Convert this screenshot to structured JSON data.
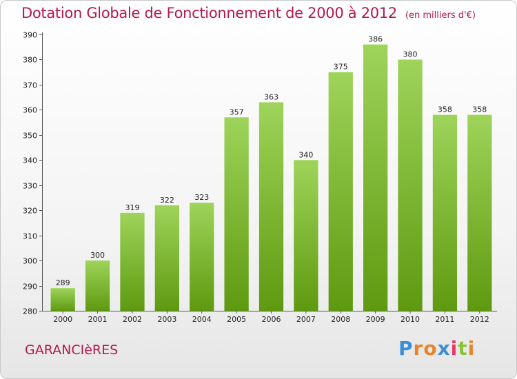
{
  "header": {
    "title": "Dotation Globale de Fonctionnement de 2000 à 2012",
    "subtitle": "(en milliers d'€)"
  },
  "footer": {
    "commune": "GARANCIèRES",
    "brand_letters": [
      "P",
      "r",
      "o",
      "x",
      "i",
      "t",
      "i"
    ],
    "brand_colors": [
      "#3a8fd6",
      "#e8842a",
      "#e8842a",
      "#3a8fd6",
      "#e83a6a",
      "#8ac43a",
      "#e8842a"
    ]
  },
  "colors": {
    "accent": "#b5174f",
    "bar_light": "#9ed45a",
    "bar_dark": "#5e9a10"
  },
  "chart_data": {
    "type": "bar",
    "title": "Dotation Globale de Fonctionnement de 2000 à 2012",
    "subtitle": "(en milliers d'€)",
    "categories": [
      "2000",
      "2001",
      "2002",
      "2003",
      "2004",
      "2005",
      "2006",
      "2007",
      "2008",
      "2009",
      "2010",
      "2011",
      "2012"
    ],
    "values": [
      289,
      300,
      319,
      322,
      323,
      357,
      363,
      340,
      375,
      386,
      380,
      358,
      358
    ],
    "ylim": [
      280,
      390
    ],
    "yticks": [
      280,
      290,
      300,
      310,
      320,
      330,
      340,
      350,
      360,
      370,
      380,
      390
    ],
    "grid": false,
    "data_labels": true
  }
}
